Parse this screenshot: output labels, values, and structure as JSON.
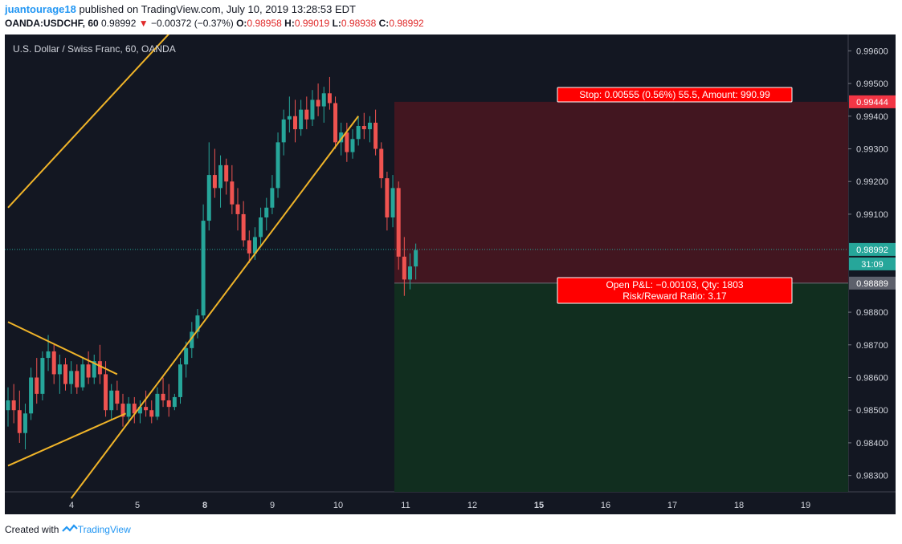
{
  "header": {
    "username": "juantourage18",
    "published_text": "published on TradingView.com, July 10, 2019 13:28:53 EDT",
    "symbol_line": "OANDA:USDCHF, 60",
    "last_price": "0.98992",
    "change": "−0.00372 (−0.37%)",
    "o_label": "O:",
    "o_value": "0.98958",
    "h_label": "H:",
    "h_value": "0.99019",
    "l_label": "L:",
    "l_value": "0.98938",
    "c_label": "C:",
    "c_value": "0.98992"
  },
  "chart_data": {
    "type": "candlestick",
    "title": "U.S. Dollar / Swiss Franc, 60, OANDA",
    "y_ticks": [
      "0.99600",
      "0.99500",
      "0.99400",
      "0.99300",
      "0.99200",
      "0.99100",
      "0.98800",
      "0.98700",
      "0.98600",
      "0.98500",
      "0.98400",
      "0.98300"
    ],
    "ylim": [
      0.9825,
      0.9965
    ],
    "x_ticks": [
      "4",
      "5",
      "8",
      "9",
      "10",
      "11",
      "12",
      "15",
      "16",
      "17",
      "18",
      "19"
    ],
    "x_ticks_bold": [
      "8",
      "15"
    ],
    "price_labels": {
      "stop_price": "0.99444",
      "current_price": "0.98992",
      "countdown": "31:09",
      "entry_price": "0.98889"
    },
    "position": {
      "type": "short",
      "entry": 0.98889,
      "stop": 0.99444,
      "stop_text": "Stop: 0.00555 (0.56%) 55.5, Amount: 990.99",
      "pnl_text": "Open P&L: −0.00103, Qty: 1803",
      "rr_text": "Risk/Reward Ratio: 3.17"
    },
    "candles": [
      [
        0.985,
        0.9857,
        0.9845,
        0.9853
      ],
      [
        0.9853,
        0.9858,
        0.9846,
        0.985
      ],
      [
        0.985,
        0.9856,
        0.984,
        0.9843
      ],
      [
        0.9843,
        0.9852,
        0.9838,
        0.9849
      ],
      [
        0.9849,
        0.9863,
        0.9847,
        0.986
      ],
      [
        0.986,
        0.9866,
        0.9852,
        0.9855
      ],
      [
        0.9855,
        0.9868,
        0.9853,
        0.9866
      ],
      [
        0.9866,
        0.9873,
        0.9862,
        0.9868
      ],
      [
        0.9868,
        0.987,
        0.9858,
        0.9861
      ],
      [
        0.9861,
        0.9867,
        0.9855,
        0.9864
      ],
      [
        0.9864,
        0.9866,
        0.9856,
        0.9858
      ],
      [
        0.9858,
        0.9865,
        0.9855,
        0.9862
      ],
      [
        0.9862,
        0.9864,
        0.9855,
        0.9857
      ],
      [
        0.9857,
        0.9866,
        0.9856,
        0.9864
      ],
      [
        0.9864,
        0.9868,
        0.9858,
        0.986
      ],
      [
        0.986,
        0.9867,
        0.9858,
        0.9865
      ],
      [
        0.9865,
        0.987,
        0.9858,
        0.9861
      ],
      [
        0.9861,
        0.9865,
        0.9848,
        0.985
      ],
      [
        0.985,
        0.9858,
        0.9847,
        0.9856
      ],
      [
        0.9856,
        0.9859,
        0.985,
        0.9852
      ],
      [
        0.9852,
        0.9855,
        0.9845,
        0.9848
      ],
      [
        0.9848,
        0.9854,
        0.9846,
        0.9852
      ],
      [
        0.9852,
        0.9854,
        0.9846,
        0.9849
      ],
      [
        0.9849,
        0.9853,
        0.9846,
        0.9851
      ],
      [
        0.9851,
        0.9856,
        0.9848,
        0.985
      ],
      [
        0.985,
        0.9853,
        0.9846,
        0.9848
      ],
      [
        0.9848,
        0.9857,
        0.9847,
        0.9855
      ],
      [
        0.9855,
        0.986,
        0.9851,
        0.9853
      ],
      [
        0.9853,
        0.9858,
        0.9848,
        0.9851
      ],
      [
        0.9851,
        0.9855,
        0.985,
        0.9854
      ],
      [
        0.9854,
        0.9866,
        0.9852,
        0.9864
      ],
      [
        0.9864,
        0.9871,
        0.986,
        0.9869
      ],
      [
        0.9869,
        0.9877,
        0.9866,
        0.9874
      ],
      [
        0.9874,
        0.9881,
        0.9872,
        0.9879
      ],
      [
        0.9879,
        0.9913,
        0.9878,
        0.9908
      ],
      [
        0.9908,
        0.9932,
        0.9905,
        0.9922
      ],
      [
        0.9922,
        0.993,
        0.9915,
        0.9918
      ],
      [
        0.9918,
        0.9928,
        0.9912,
        0.9925
      ],
      [
        0.9925,
        0.9927,
        0.9916,
        0.992
      ],
      [
        0.992,
        0.9925,
        0.991,
        0.9913
      ],
      [
        0.9913,
        0.9918,
        0.9905,
        0.991
      ],
      [
        0.991,
        0.9914,
        0.99,
        0.9902
      ],
      [
        0.9902,
        0.9905,
        0.9895,
        0.9898
      ],
      [
        0.9898,
        0.9906,
        0.9896,
        0.9903
      ],
      [
        0.9903,
        0.9912,
        0.99,
        0.9909
      ],
      [
        0.9909,
        0.9915,
        0.9905,
        0.9912
      ],
      [
        0.9912,
        0.9922,
        0.991,
        0.9918
      ],
      [
        0.9918,
        0.9935,
        0.9915,
        0.9932
      ],
      [
        0.9932,
        0.9942,
        0.9928,
        0.9939
      ],
      [
        0.9939,
        0.9946,
        0.9935,
        0.994
      ],
      [
        0.994,
        0.9945,
        0.9932,
        0.9936
      ],
      [
        0.9936,
        0.9945,
        0.9934,
        0.9942
      ],
      [
        0.9942,
        0.9946,
        0.9936,
        0.9939
      ],
      [
        0.9939,
        0.9948,
        0.9937,
        0.9945
      ],
      [
        0.9945,
        0.995,
        0.994,
        0.9943
      ],
      [
        0.9943,
        0.9949,
        0.9938,
        0.9947
      ],
      [
        0.9947,
        0.9952,
        0.9942,
        0.9944
      ],
      [
        0.9944,
        0.9946,
        0.993,
        0.9932
      ],
      [
        0.9932,
        0.9938,
        0.9928,
        0.9935
      ],
      [
        0.9935,
        0.9938,
        0.9926,
        0.9929
      ],
      [
        0.9929,
        0.9936,
        0.9927,
        0.9933
      ],
      [
        0.9933,
        0.994,
        0.9931,
        0.9937
      ],
      [
        0.9937,
        0.9941,
        0.9933,
        0.9936
      ],
      [
        0.9936,
        0.994,
        0.9932,
        0.9938
      ],
      [
        0.9938,
        0.9942,
        0.9928,
        0.993
      ],
      [
        0.993,
        0.9932,
        0.9918,
        0.9921
      ],
      [
        0.9921,
        0.9923,
        0.9905,
        0.9909
      ],
      [
        0.9909,
        0.9922,
        0.9906,
        0.9918
      ],
      [
        0.9918,
        0.992,
        0.9893,
        0.9897
      ],
      [
        0.9897,
        0.9903,
        0.9885,
        0.989
      ],
      [
        0.989,
        0.9898,
        0.9887,
        0.9894
      ],
      [
        0.9894,
        0.9901,
        0.989,
        0.9899
      ]
    ],
    "trendlines": [
      {
        "from": [
          0,
          0.9912
        ],
        "to": [
          29.5,
          0.9968
        ]
      },
      {
        "from": [
          0,
          0.9877
        ],
        "to": [
          19,
          0.9861
        ]
      },
      {
        "from": [
          0,
          0.9833
        ],
        "to": [
          20.5,
          0.9849
        ]
      },
      {
        "from": [
          11,
          0.9823
        ],
        "to": [
          61,
          0.994
        ]
      }
    ]
  },
  "footer": {
    "created_with": "Created with",
    "brand": "TradingView"
  }
}
